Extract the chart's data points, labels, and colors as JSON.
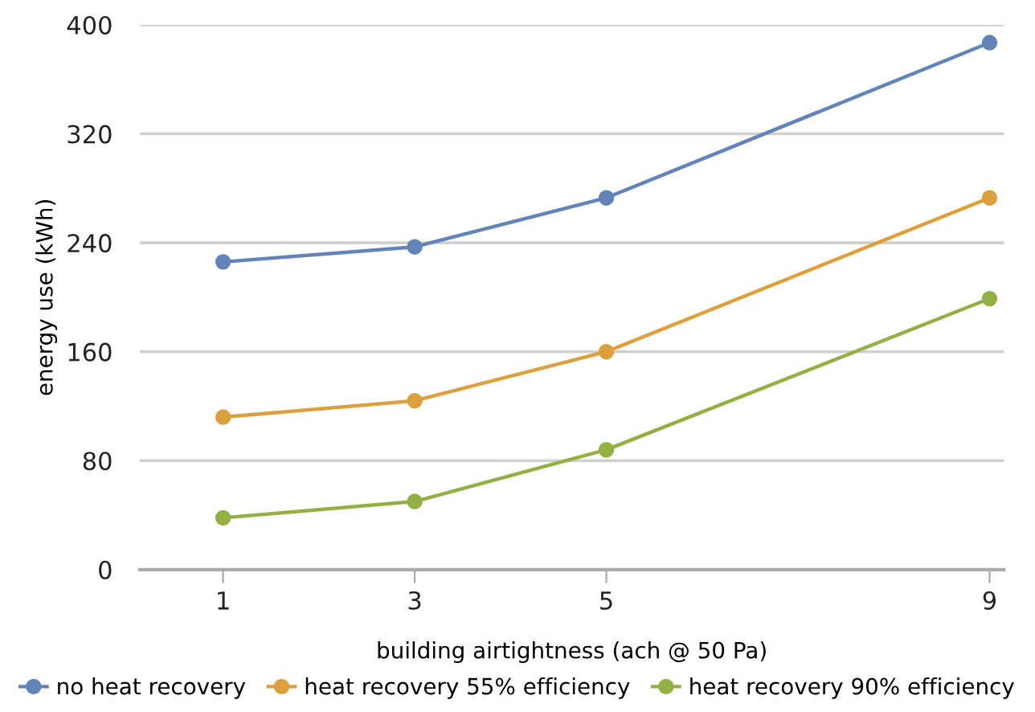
{
  "chart_data": {
    "type": "line",
    "xlabel": "building airtightness (ach @ 50 Pa)",
    "ylabel": "energy use (kWh)",
    "x": [
      1,
      3,
      5,
      9
    ],
    "series": [
      {
        "name": "no heat recovery",
        "color": "#6384b8",
        "values": [
          226,
          237,
          273,
          387
        ]
      },
      {
        "name": "heat recovery 55% efficiency",
        "color": "#dca03e",
        "values": [
          112,
          124,
          160,
          273
        ]
      },
      {
        "name": "heat recovery 90% efficiency",
        "color": "#94b045",
        "values": [
          38,
          50,
          88,
          199
        ]
      }
    ],
    "xlim": [
      0.13,
      9.15
    ],
    "xticks": [
      1,
      3,
      5,
      9
    ],
    "ylim": [
      0,
      400
    ],
    "yticks": [
      0,
      80,
      160,
      240,
      320,
      400
    ],
    "grid": "y",
    "legend": "bottom",
    "marker": "circle",
    "line_style": "solid"
  }
}
